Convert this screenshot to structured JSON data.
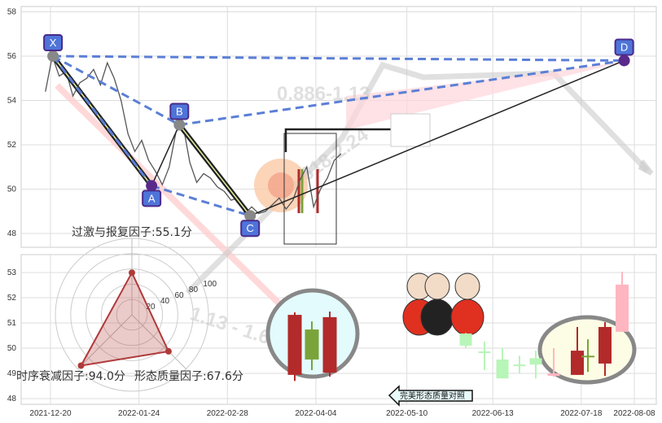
{
  "chart_data": [
    {
      "type": "line",
      "panel": "top",
      "ylim": [
        47.5,
        58.3
      ],
      "yticks": [
        48,
        50,
        52,
        54,
        56,
        58
      ],
      "grid": true,
      "pattern_points": [
        {
          "label": "X",
          "date": "2021-12-21",
          "value": 56.0
        },
        {
          "label": "A",
          "date": "2022-01-29",
          "value": 50.15
        },
        {
          "label": "B",
          "date": "2022-02-09",
          "value": 52.9
        },
        {
          "label": "C",
          "date": "2022-03-09",
          "value": 48.8
        },
        {
          "label": "D",
          "date": "2022-08-04",
          "value": 55.8
        }
      ],
      "price_series": [
        54.4,
        56.0,
        55.1,
        55.3,
        54.2,
        54.8,
        55.0,
        55.4,
        54.7,
        55.7,
        55.0,
        54.0,
        52.5,
        51.7,
        52.2,
        51.3,
        50.8,
        50.2,
        51.0,
        52.6,
        52.9,
        51.2,
        50.3,
        50.7,
        50.5,
        50.1,
        49.9,
        49.5,
        49.6,
        48.9,
        49.2,
        48.9,
        49.0,
        49.3,
        49.6,
        49.1,
        49.5,
        50.4,
        51.0,
        49.2,
        50.0,
        50.5,
        51.3,
        51.6
      ],
      "ratio_labels": [
        "0.886-1.13",
        "1.618-2.24",
        "1.13 - 1.618"
      ],
      "colors": {
        "pattern_line": "#222222",
        "dashed": "#5b7fd6",
        "label_box": "#4f74d9",
        "zone": "#ffd6dc"
      }
    },
    {
      "type": "candlestick",
      "panel": "bottom",
      "ylim": [
        47.8,
        53.7
      ],
      "yticks": [
        48,
        49,
        50,
        51,
        52,
        53
      ],
      "xticks": [
        "2021-12-20",
        "2022-01-24",
        "2022-02-28",
        "2022-04-04",
        "2022-05-10",
        "2022-06-13",
        "2022-07-18",
        "2022-08-08"
      ],
      "candles": [
        {
          "group": "highlight",
          "open": 48.94,
          "close": 51.32,
          "high": 51.42,
          "low": 48.7,
          "color": "#b22a2a"
        },
        {
          "group": "highlight",
          "open": 50.74,
          "close": 49.55,
          "high": 51.06,
          "low": 49.13,
          "color": "#7aa33a"
        },
        {
          "group": "highlight",
          "open": 49.03,
          "close": 51.23,
          "high": 51.45,
          "low": 48.87,
          "color": "#b22a2a"
        },
        {
          "group": "recent",
          "open": 50.58,
          "close": 50.1,
          "high": 50.6,
          "low": 50.0,
          "color": "#b8f5b8"
        },
        {
          "group": "recent",
          "open": 49.87,
          "close": 49.85,
          "high": 50.26,
          "low": 49.13,
          "color": "#b8f5b8"
        },
        {
          "group": "recent",
          "open": 49.55,
          "close": 48.8,
          "high": 50.0,
          "low": 48.8,
          "color": "#b8f5b8"
        },
        {
          "group": "recent",
          "open": 49.35,
          "close": 49.33,
          "high": 49.7,
          "low": 49.0,
          "color": "#b8f5b8"
        },
        {
          "group": "recent",
          "open": 49.6,
          "close": 49.35,
          "high": 49.9,
          "low": 48.8,
          "color": "#b8f5b8"
        },
        {
          "group": "recent",
          "open": 48.9,
          "close": 49.0,
          "high": 50.0,
          "low": 48.87,
          "color": "#ffb6c1"
        },
        {
          "group": "target",
          "open": 48.94,
          "close": 49.9,
          "high": 50.84,
          "low": 48.94,
          "color": "#b22a2a"
        },
        {
          "group": "target",
          "open": 49.7,
          "close": 49.68,
          "high": 50.35,
          "low": 49.06,
          "color": "#7aa33a"
        },
        {
          "group": "target",
          "open": 49.39,
          "close": 50.84,
          "high": 51.03,
          "low": 48.9,
          "color": "#b22a2a"
        },
        {
          "group": "target",
          "open": 50.65,
          "close": 52.52,
          "high": 53.03,
          "low": 50.65,
          "color": "#ffb6c1"
        }
      ],
      "grid": true
    },
    {
      "type": "radar",
      "rings": [
        20,
        40,
        60,
        80,
        100
      ],
      "axes": [
        {
          "name": "过激与报复因子",
          "value": 55.1,
          "label": "过激与报复因子:55.1分"
        },
        {
          "name": "形态质量因子",
          "value": 67.6,
          "label": "形态质量因子:67.6分"
        },
        {
          "name": "时序衰减因子",
          "value": 94.0,
          "label": "时序衰减因子:94.0分"
        }
      ],
      "color": "#b03a3a"
    }
  ],
  "callout": {
    "label": "完美形态质量对照",
    "icon": "arrow-left-icon"
  }
}
